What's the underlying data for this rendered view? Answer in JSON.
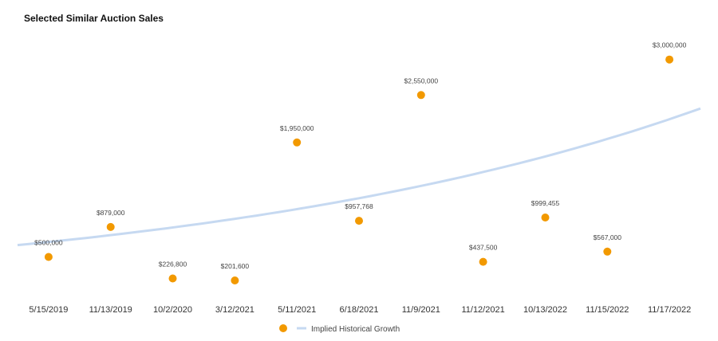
{
  "chart_data": {
    "type": "scatter",
    "title": "Selected Similar Auction Sales",
    "categories": [
      "5/15/2019",
      "11/13/2019",
      "10/2/2020",
      "3/12/2021",
      "5/11/2021",
      "6/18/2021",
      "11/9/2021",
      "11/12/2021",
      "10/13/2022",
      "11/15/2022",
      "11/17/2022"
    ],
    "values": [
      500000,
      879000,
      226800,
      201600,
      1950000,
      957768,
      2550000,
      437500,
      999455,
      567000,
      3000000
    ],
    "labels": [
      "$500,000",
      "$879,000",
      "$226,800",
      "$201,600",
      "$1,950,000",
      "$957,768",
      "$2,550,000",
      "$437,500",
      "$999,455",
      "$567,000",
      "$3,000,000"
    ],
    "trendline": {
      "name": "Implied Historical Growth",
      "type": "exponential",
      "start_value": 650000,
      "end_value": 2380000
    },
    "ylim": [
      0,
      3300000
    ],
    "grid": false,
    "legend_position": "bottom",
    "colors": {
      "points": "#F29900",
      "trendline": "#C6D9F1"
    }
  }
}
